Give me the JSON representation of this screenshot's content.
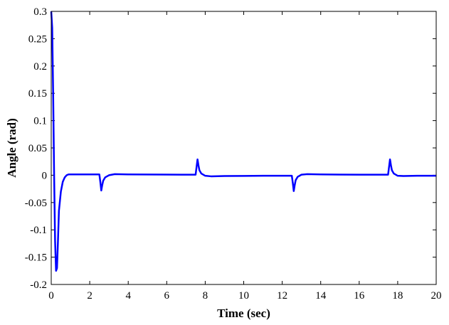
{
  "chart_data": {
    "type": "line",
    "title": "",
    "xlabel": "Time (sec)",
    "ylabel": "Angle (rad)",
    "xlim": [
      0,
      20
    ],
    "ylim": [
      -0.2,
      0.3
    ],
    "x_ticks": [
      0,
      2,
      4,
      6,
      8,
      10,
      12,
      14,
      16,
      18,
      20
    ],
    "y_ticks": [
      -0.2,
      -0.15,
      -0.1,
      -0.05,
      0,
      0.05,
      0.1,
      0.15,
      0.2,
      0.25,
      0.3
    ],
    "x_tick_labels": [
      "0",
      "2",
      "4",
      "6",
      "8",
      "10",
      "12",
      "14",
      "16",
      "18",
      "20"
    ],
    "y_tick_labels": [
      "-0.2",
      "-0.15",
      "-0.1",
      "-0.05",
      "0",
      "0.05",
      "0.1",
      "0.15",
      "0.2",
      "0.25",
      "0.3"
    ],
    "grid": false,
    "legend": "none",
    "series": [
      {
        "color": "#0000ff",
        "x": [
          0,
          0.05,
          0.1,
          0.15,
          0.2,
          0.25,
          0.3,
          0.35,
          0.4,
          0.5,
          0.6,
          0.7,
          0.8,
          0.9,
          1.0,
          1.2,
          1.5,
          2.0,
          2.5,
          2.55,
          2.6,
          2.65,
          2.7,
          2.8,
          3.0,
          3.3,
          4.0,
          5.0,
          6.0,
          7.0,
          7.5,
          7.55,
          7.6,
          7.65,
          7.7,
          7.8,
          8.0,
          8.3,
          9.0,
          10.0,
          11.0,
          12.0,
          12.5,
          12.55,
          12.6,
          12.65,
          12.7,
          12.8,
          13.0,
          13.3,
          14.0,
          15.0,
          16.0,
          17.0,
          17.5,
          17.55,
          17.6,
          17.65,
          17.7,
          17.8,
          18.0,
          18.3,
          19.0,
          20.0
        ],
        "y": [
          0.3,
          0.27,
          0.15,
          0.0,
          -0.12,
          -0.175,
          -0.17,
          -0.12,
          -0.065,
          -0.03,
          -0.012,
          -0.004,
          0.0,
          0.0015,
          0.0015,
          0.0015,
          0.0015,
          0.0015,
          0.0015,
          -0.012,
          -0.028,
          -0.018,
          -0.01,
          -0.004,
          0.0,
          0.002,
          0.0015,
          0.0013,
          0.0012,
          0.001,
          0.001,
          0.015,
          0.029,
          0.018,
          0.009,
          0.003,
          -0.001,
          -0.002,
          -0.0015,
          -0.0012,
          -0.001,
          -0.001,
          -0.001,
          -0.014,
          -0.029,
          -0.018,
          -0.009,
          -0.003,
          0.001,
          0.002,
          0.0015,
          0.0012,
          0.001,
          0.001,
          0.001,
          0.015,
          0.029,
          0.018,
          0.009,
          0.003,
          -0.001,
          -0.0015,
          -0.001,
          -0.001
        ]
      }
    ]
  }
}
